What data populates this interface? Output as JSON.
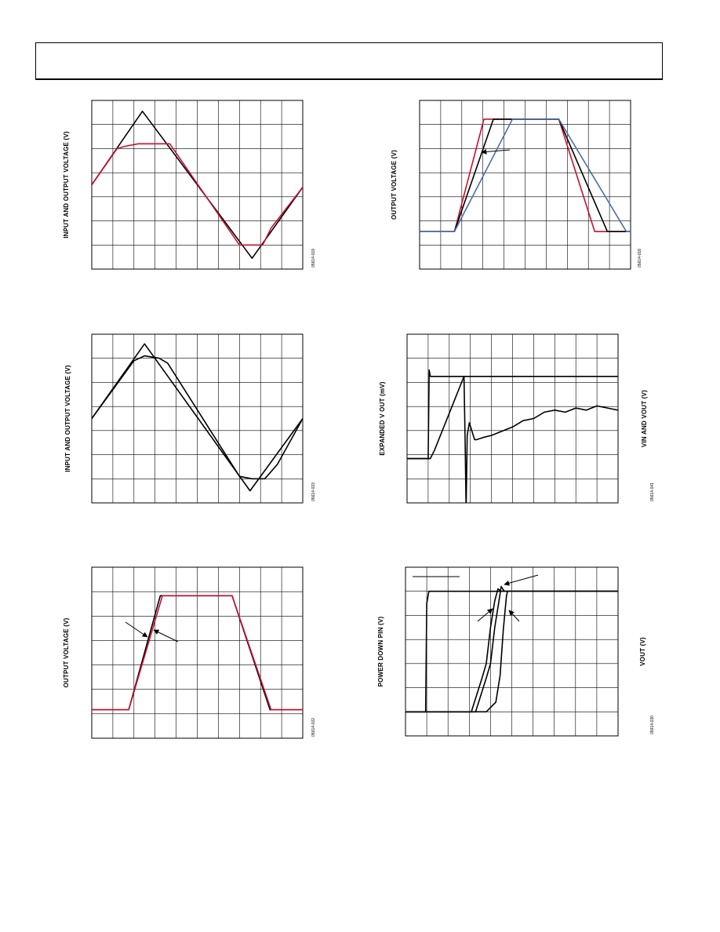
{
  "page": {
    "header_text": ""
  },
  "figures": [
    {
      "id": "fig-top-left",
      "ylabel": "INPUT AND OUTPUT VOLTAGE (V)",
      "ylabel2": "",
      "code": "05614-019",
      "chart_data": {
        "type": "line",
        "title": "",
        "xlabel": "",
        "ylabel": "INPUT AND OUTPUT VOLTAGE (V)",
        "grid": true,
        "xlim": [
          0,
          10
        ],
        "ylim": [
          0,
          7
        ],
        "series": [
          {
            "color": "#000000",
            "x": [
              0,
              2.4,
              7.6,
              10
            ],
            "y": [
              3.5,
              6.55,
              0.45,
              3.4
            ]
          },
          {
            "color": "#c8102e",
            "x": [
              0,
              1.2,
              1.6,
              2.2,
              3.7,
              7.0,
              8.1,
              8.5,
              10
            ],
            "y": [
              3.5,
              5.0,
              5.1,
              5.2,
              5.2,
              1.0,
              1.0,
              1.7,
              3.4
            ]
          }
        ]
      }
    },
    {
      "id": "fig-top-right",
      "ylabel": "OUTPUT VOLTAGE (V)",
      "ylabel2": "",
      "code": "05614-018",
      "chart_data": {
        "type": "line",
        "title": "",
        "xlabel": "",
        "ylabel": "OUTPUT VOLTAGE (V)",
        "grid": true,
        "xlim": [
          0,
          10
        ],
        "ylim": [
          0,
          9
        ],
        "series": [
          {
            "color": "#c8102e",
            "x": [
              0,
              1.65,
              3.05,
              6.6,
              8.3,
              10
            ],
            "y": [
              2,
              2,
              8.0,
              8.0,
              2,
              2
            ]
          },
          {
            "color": "#000000",
            "x": [
              0,
              1.65,
              3.5,
              6.6,
              8.9,
              10
            ],
            "y": [
              2,
              2,
              8.0,
              8.0,
              2,
              2
            ]
          },
          {
            "color": "#4a6fa5",
            "x": [
              0,
              1.65,
              4.4,
              6.6,
              9.8,
              10
            ],
            "y": [
              2,
              2,
              8.0,
              8.0,
              2,
              2
            ]
          }
        ]
      }
    },
    {
      "id": "fig-mid-left",
      "ylabel": "INPUT AND OUTPUT VOLTAGE (V)",
      "ylabel2": "",
      "code": "05614-023",
      "chart_data": {
        "type": "line",
        "title": "",
        "xlabel": "",
        "ylabel": "INPUT AND OUTPUT VOLTAGE (V)",
        "grid": true,
        "xlim": [
          0,
          10
        ],
        "ylim": [
          0,
          7
        ],
        "series": [
          {
            "color": "#000000",
            "x": [
              0,
              2.5,
              7.5,
              10
            ],
            "y": [
              3.5,
              6.6,
              0.5,
              3.5
            ]
          },
          {
            "color": "#000000",
            "x": [
              0,
              2.0,
              2.5,
              3.2,
              3.6,
              7.0,
              7.6,
              8.2,
              8.8,
              10
            ],
            "y": [
              3.5,
              5.9,
              6.1,
              6.0,
              5.8,
              1.1,
              1.0,
              1.0,
              1.6,
              3.5
            ]
          }
        ]
      }
    },
    {
      "id": "fig-mid-right",
      "ylabel": "EXPANDED V OUT (mV)",
      "ylabel2": "VIN AND VOUT (V)",
      "code": "05614-041",
      "chart_data": {
        "type": "line",
        "title": "",
        "xlabel": "",
        "ylabel": "EXPANDED V OUT (mV)",
        "grid": true,
        "xlim": [
          0,
          10
        ],
        "ylim": [
          0,
          8
        ],
        "series": [
          {
            "color": "#000000",
            "x": [
              0,
              1.0,
              1.05,
              1.1,
              10
            ],
            "y": [
              2.1,
              2.1,
              6.3,
              6.0,
              6.0
            ]
          },
          {
            "color": "#000000",
            "x": [
              0,
              1.1,
              1.3,
              2.7,
              2.75,
              2.8,
              2.85,
              2.95,
              3.2,
              3.3,
              3.6,
              4.0,
              4.5,
              5.0,
              5.5,
              6.0,
              6.5,
              7.0,
              7.5,
              8.0,
              8.5,
              9.0,
              9.5,
              10
            ],
            "y": [
              2.1,
              2.1,
              2.5,
              6.0,
              3.0,
              -0.3,
              3.2,
              3.8,
              3.0,
              3.0,
              3.1,
              3.2,
              3.4,
              3.6,
              3.9,
              4.0,
              4.3,
              4.4,
              4.3,
              4.5,
              4.4,
              4.6,
              4.5,
              4.4
            ]
          }
        ]
      }
    },
    {
      "id": "fig-bottom-left",
      "ylabel": "OUTPUT VOLTAGE (V)",
      "ylabel2": "",
      "code": "05614-022",
      "chart_data": {
        "type": "line",
        "title": "",
        "xlabel": "",
        "ylabel": "OUTPUT VOLTAGE (V)",
        "grid": true,
        "xlim": [
          0,
          10
        ],
        "ylim": [
          0,
          6
        ],
        "series": [
          {
            "color": "#000000",
            "x": [
              0,
              1.75,
              3.25,
              6.65,
              8.45,
              10
            ],
            "y": [
              1.0,
              1.0,
              5.0,
              5.0,
              1.0,
              1.0
            ]
          },
          {
            "color": "#c8102e",
            "x": [
              0,
              1.75,
              3.35,
              6.65,
              8.5,
              10
            ],
            "y": [
              1.0,
              1.0,
              5.0,
              5.0,
              1.0,
              1.0
            ]
          }
        ]
      }
    },
    {
      "id": "fig-bottom-right",
      "ylabel": "POWER DOWN PIN (V)",
      "ylabel2": "VOUT (V)",
      "code": "05614-030",
      "chart_data": {
        "type": "line",
        "title": "",
        "xlabel": "",
        "ylabel": "POWER DOWN PIN (V)",
        "grid": true,
        "xlim": [
          0,
          10
        ],
        "ylim": [
          0,
          7
        ],
        "series": [
          {
            "color": "#000000",
            "x": [
              0,
              0.95,
              1.0,
              1.1,
              10
            ],
            "y": [
              1.0,
              1.0,
              5.5,
              6.0,
              6.0
            ]
          },
          {
            "color": "#000000",
            "x": [
              0,
              3.1,
              3.6,
              3.8,
              4.0,
              4.2,
              4.35,
              4.5,
              10
            ],
            "y": [
              1.0,
              1.0,
              2.4,
              3.0,
              4.5,
              5.6,
              6.1,
              6.0,
              6.0
            ]
          },
          {
            "color": "#000000",
            "x": [
              0,
              3.3,
              3.8,
              4.0,
              4.2,
              4.4,
              4.5,
              4.65,
              10
            ],
            "y": [
              1.0,
              1.0,
              2.4,
              3.0,
              4.5,
              5.6,
              6.2,
              6.0,
              6.0
            ]
          },
          {
            "color": "#000000",
            "x": [
              0,
              3.8,
              4.25,
              4.45,
              4.6,
              4.75,
              4.8,
              5.0,
              10
            ],
            "y": [
              1.0,
              1.0,
              1.4,
              2.5,
              4.4,
              5.8,
              6.0,
              6.0,
              6.0
            ]
          }
        ]
      }
    }
  ]
}
